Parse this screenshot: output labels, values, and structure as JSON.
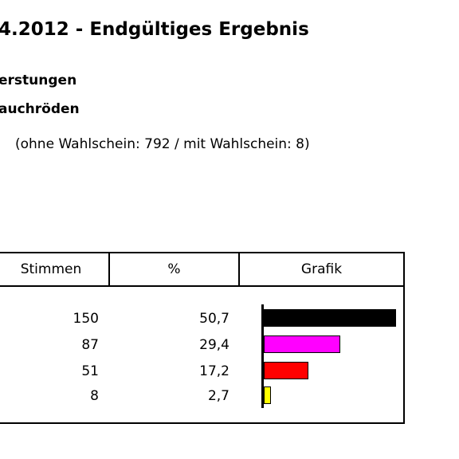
{
  "header": {
    "title": "4.2012 - Endgültiges Ergebnis",
    "subtitle1": "erstungen",
    "subtitle2": "auchröden",
    "note": "(ohne Wahlschein: 792 / mit Wahlschein: 8)"
  },
  "table": {
    "columns": [
      "Stimmen",
      "%",
      "Grafik"
    ],
    "rows": [
      {
        "stimmen": "150",
        "percent": "50,7",
        "value": 50.7,
        "color": "#000000"
      },
      {
        "stimmen": "87",
        "percent": "29,4",
        "value": 29.4,
        "color": "#ff00ff"
      },
      {
        "stimmen": "51",
        "percent": "17,2",
        "value": 17.2,
        "color": "#ff0000"
      },
      {
        "stimmen": "8",
        "percent": "2,7",
        "value": 2.7,
        "color": "#ffff00"
      }
    ]
  },
  "chart_data": {
    "type": "bar",
    "orientation": "horizontal",
    "categories": [
      "",
      "",
      "",
      ""
    ],
    "values": [
      50.7,
      29.4,
      17.2,
      2.7
    ],
    "colors": [
      "#000000",
      "#ff00ff",
      "#ff0000",
      "#ffff00"
    ],
    "xlim": [
      0,
      50.7
    ],
    "grid": false,
    "title": "",
    "xlabel": "",
    "ylabel": ""
  }
}
